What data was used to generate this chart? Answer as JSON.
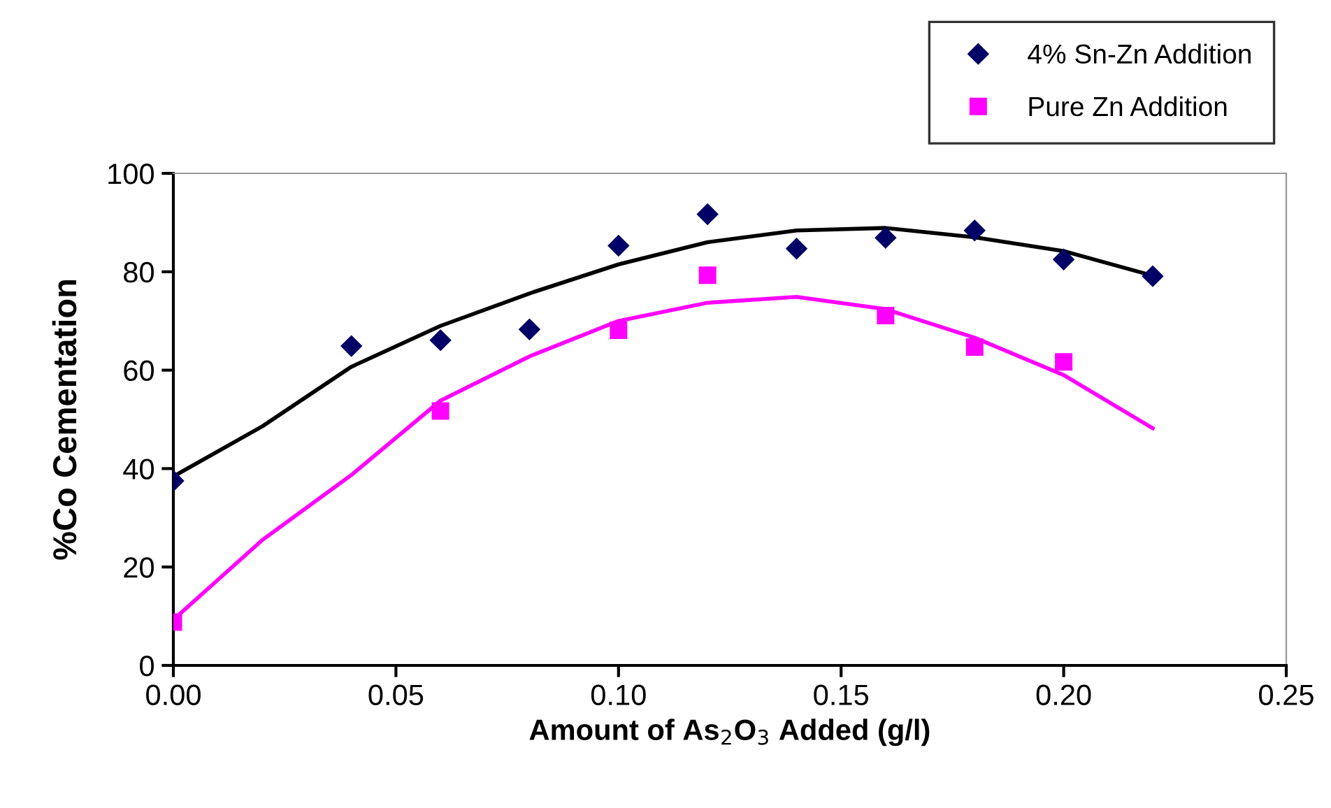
{
  "chart_data": {
    "type": "scatter",
    "xlabel": "Amount of As$_{2}$O$_{3}$ Added (g/l)",
    "ylabel": "%Co Cementation",
    "xlim": [
      0,
      0.25
    ],
    "ylim": [
      0,
      100
    ],
    "xticks": [
      {
        "value": 0,
        "label": "0.00"
      },
      {
        "value": 0.05,
        "label": "0.05"
      },
      {
        "value": 0.1,
        "label": "0.10"
      },
      {
        "value": 0.15,
        "label": "0.15"
      },
      {
        "value": 0.2,
        "label": "0.20"
      },
      {
        "value": 0.25,
        "label": "0.25"
      }
    ],
    "yticks": [
      0,
      20,
      40,
      60,
      80,
      100
    ],
    "grid": false,
    "legend": "top right",
    "series": [
      {
        "name": "4% Sn-Zn Addition",
        "marker": "diamond",
        "color": "#000066",
        "x": [
          0,
          0.04,
          0.06,
          0.08,
          0.1,
          0.12,
          0.14,
          0.16,
          0.18,
          0.2,
          0.22
        ],
        "values": [
          37.5,
          64.9,
          66.1,
          68.3,
          85.3,
          91.7,
          84.7,
          86.9,
          88.4,
          82.5,
          79.1
        ]
      },
      {
        "name": "Pure Zn Addition",
        "marker": "square",
        "color": "#ff00ff",
        "x": [
          0,
          0.06,
          0.1,
          0.12,
          0.16,
          0.18,
          0.2
        ],
        "values": [
          8.8,
          51.7,
          68.1,
          79.3,
          71.1,
          64.7,
          61.7
        ]
      },
      {
        "type": "line",
        "color": "#000000",
        "x": [
          0,
          0.02,
          0.04,
          0.06,
          0.08,
          0.1,
          0.12,
          0.14,
          0.16,
          0.18,
          0.2,
          0.22
        ],
        "values": [
          38.4,
          48.6,
          60.7,
          69,
          75.6,
          81.5,
          86,
          88.4,
          88.9,
          87,
          84.2,
          79.2
        ]
      },
      {
        "type": "line",
        "color": "#ff00ff",
        "x": [
          0,
          0.02,
          0.04,
          0.06,
          0.08,
          0.1,
          0.12,
          0.14,
          0.16,
          0.18,
          0.2,
          0.22
        ],
        "values": [
          9.3,
          25.5,
          38.7,
          53.8,
          62.8,
          70,
          73.7,
          74.9,
          72.4,
          66.6,
          59,
          48.2
        ]
      }
    ]
  }
}
